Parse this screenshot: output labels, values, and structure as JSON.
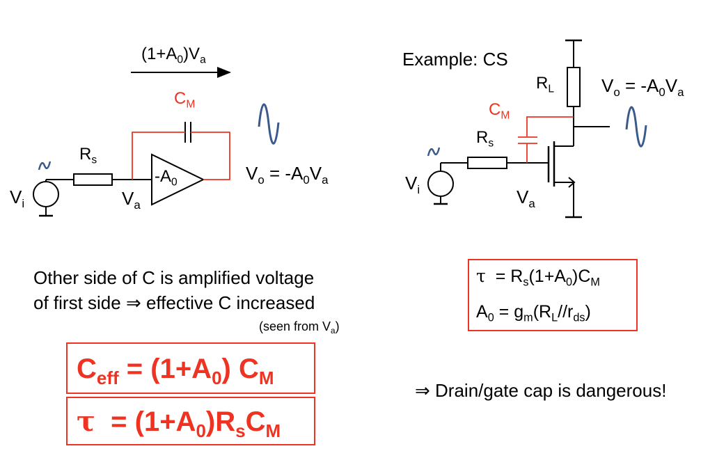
{
  "left_circuit": {
    "arrow_label_pre": "(1+A",
    "arrow_label_sub0": "0",
    "arrow_label_mid": ")V",
    "arrow_label_suba": "a",
    "cm_main": "C",
    "cm_sub": "M",
    "rs_main": "R",
    "rs_sub": "s",
    "amp_pre": "-A",
    "amp_sub": "0",
    "vo_pre": "V",
    "vo_sub_o": "o",
    "vo_mid": " = -A",
    "vo_sub_0": "0",
    "vo_v": "V",
    "vo_sub_a": "a",
    "vi_main": "V",
    "vi_sub": "i",
    "va_main": "V",
    "va_sub": "a"
  },
  "right_circuit": {
    "title": "Example: CS",
    "rl_main": "R",
    "rl_sub": "L",
    "vo_pre": "V",
    "vo_sub_o": "o",
    "vo_mid": " = -A",
    "vo_sub_0": "0",
    "vo_v": "V",
    "vo_sub_a": "a",
    "cm_main": "C",
    "cm_sub": "M",
    "rs_main": "R",
    "rs_sub": "s",
    "vi_main": "V",
    "vi_sub": "i",
    "va_main": "V",
    "va_sub": "a"
  },
  "explanation": {
    "line1": "Other side of C is amplified voltage",
    "line2_pre": "of first side ",
    "line2_arrow": "⇒",
    "line2_post": " effective C increased",
    "seen_pre": "(seen from V",
    "seen_sub": "a",
    "seen_post": ")"
  },
  "formula_box_right": {
    "tau": "τ",
    "eq1_pre": "  = R",
    "eq1_sub_s": "s",
    "eq1_mid": "(1+A",
    "eq1_sub_0": "0",
    "eq1_post": ")C",
    "eq1_sub_m": "M",
    "eq2_a": "A",
    "eq2_sub_0": "0",
    "eq2_mid": " = g",
    "eq2_sub_m": "m",
    "eq2_r": "(R",
    "eq2_sub_l": "L",
    "eq2_mid2": "//r",
    "eq2_sub_ds": "ds",
    "eq2_post": ")"
  },
  "ceff_box": {
    "c": "C",
    "sub_eff": "eff",
    "mid": " = (1+A",
    "sub_0": "0",
    "post": ") C",
    "sub_m": "M"
  },
  "tau_box": {
    "tau": "τ",
    "mid": "  = (1+A",
    "sub_0": "0",
    "r": ")R",
    "sub_s": "s",
    "c": "C",
    "sub_m": "M"
  },
  "conclusion": {
    "arrow": "⇒",
    "text": " Drain/gate cap is dangerous!"
  },
  "colors": {
    "accent": "#ee3322",
    "wave": "#3a5a8c",
    "wire": "#000000"
  }
}
